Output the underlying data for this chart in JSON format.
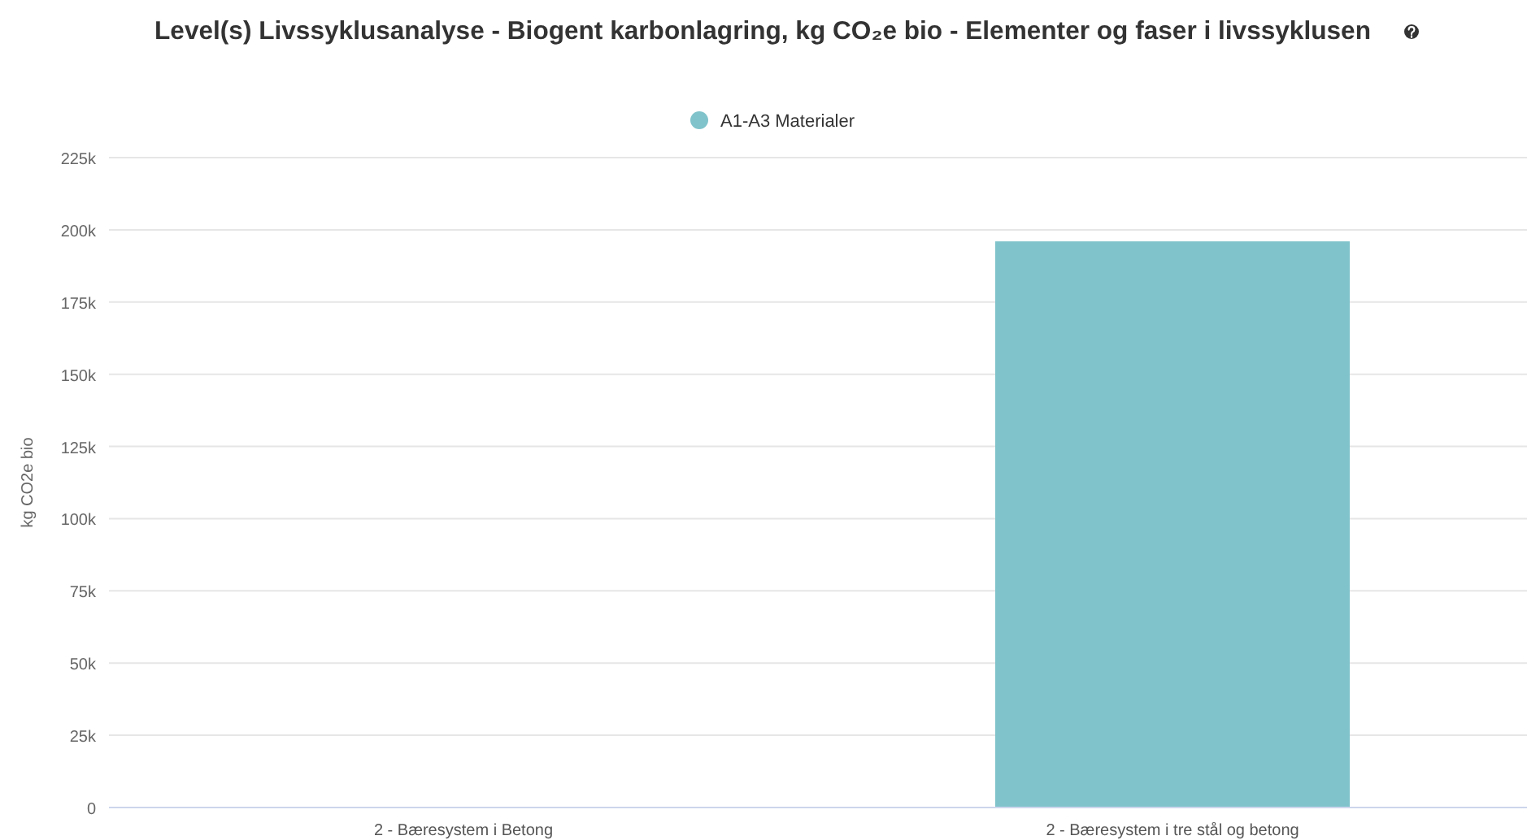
{
  "chart_data": {
    "type": "bar",
    "title": "Level(s) Livssyklusanalyse - Biogent karbonlagring, kg CO₂e bio - Elementer og faser i livssyklusen",
    "ylabel": "kg CO2e bio",
    "categories": [
      "2 - Bæresystem i Betong",
      "2 - Bæresystem i tre stål og betong"
    ],
    "series": [
      {
        "name": "A1-A3 Materialer",
        "color": "#80c3cb",
        "values": [
          0,
          196000
        ]
      }
    ],
    "ylim": [
      0,
      225000
    ],
    "yticks": [
      0,
      {
        "value": 25000,
        "label": "25k"
      },
      {
        "value": 50000,
        "label": "50k"
      },
      {
        "value": 75000,
        "label": "75k"
      },
      {
        "value": 100000,
        "label": "100k"
      },
      {
        "value": 125000,
        "label": "125k"
      },
      {
        "value": 150000,
        "label": "150k"
      },
      {
        "value": 175000,
        "label": "175k"
      },
      {
        "value": 200000,
        "label": "200k"
      },
      {
        "value": 225000,
        "label": "225k"
      }
    ],
    "grid": "y",
    "legend": "top"
  }
}
